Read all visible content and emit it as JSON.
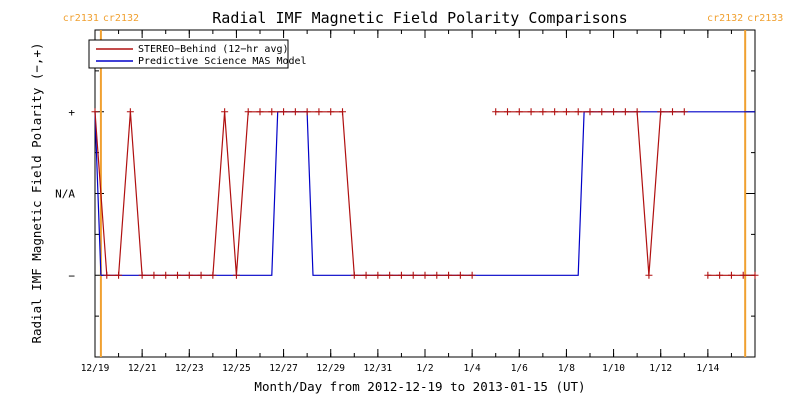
{
  "chart_data": {
    "type": "line",
    "title": "Radial IMF Magnetic Field Polarity Comparisons",
    "xlabel": "Month/Day from 2012-12-19 to 2013-01-15 (UT)",
    "ylabel": "Radial IMF Magnetic Field Polarity (−,+)",
    "xlim": [
      "2012-12-19T00:00",
      "2013-01-16T00:00"
    ],
    "x_ticks": [
      "12/19",
      "12/21",
      "12/23",
      "12/25",
      "12/27",
      "12/29",
      "12/31",
      "1/2",
      "1/4",
      "1/6",
      "1/8",
      "1/10",
      "1/12",
      "1/14"
    ],
    "x_tick_dates": [
      "2012-12-19",
      "2012-12-21",
      "2012-12-23",
      "2012-12-25",
      "2012-12-27",
      "2012-12-29",
      "2012-12-31",
      "2013-01-02",
      "2013-01-04",
      "2013-01-06",
      "2013-01-08",
      "2013-01-10",
      "2013-01-12",
      "2013-01-14"
    ],
    "y_categories": [
      "−",
      "N/A",
      "+"
    ],
    "y_category_values": [
      -1,
      0,
      1
    ],
    "ylim": [
      -2,
      2
    ],
    "legend_position": "top-left",
    "carrington_markers": [
      {
        "date": "2012-12-19T06:00",
        "left_label": "cr2131",
        "right_label": "cr2132"
      },
      {
        "date": "2013-01-15T14:00",
        "left_label": "cr2132",
        "right_label": "cr2133"
      }
    ],
    "marker_color": "#f0a030",
    "series": [
      {
        "name": "STEREO−Behind (12−hr avg)",
        "color": "#b01010",
        "marker": "plus",
        "points": [
          [
            "2012-12-19T00:00",
            1
          ],
          [
            "2012-12-19T12:00",
            -1
          ],
          [
            "2012-12-20T00:00",
            -1
          ],
          [
            "2012-12-20T12:00",
            1
          ],
          [
            "2012-12-21T00:00",
            -1
          ],
          [
            "2012-12-21T12:00",
            -1
          ],
          [
            "2012-12-22T00:00",
            -1
          ],
          [
            "2012-12-22T12:00",
            -1
          ],
          [
            "2012-12-23T00:00",
            -1
          ],
          [
            "2012-12-23T12:00",
            -1
          ],
          [
            "2012-12-24T00:00",
            -1
          ],
          [
            "2012-12-24T12:00",
            1
          ],
          [
            "2012-12-25T00:00",
            -1
          ],
          [
            "2012-12-25T12:00",
            1
          ],
          [
            "2012-12-26T00:00",
            1
          ],
          [
            "2012-12-26T12:00",
            1
          ],
          [
            "2012-12-27T00:00",
            1
          ],
          [
            "2012-12-27T12:00",
            1
          ],
          [
            "2012-12-28T00:00",
            1
          ],
          [
            "2012-12-28T12:00",
            1
          ],
          [
            "2012-12-29T00:00",
            1
          ],
          [
            "2012-12-29T12:00",
            1
          ],
          [
            "2012-12-30T00:00",
            -1
          ],
          [
            "2012-12-30T12:00",
            -1
          ],
          [
            "2012-12-31T00:00",
            -1
          ],
          [
            "2012-12-31T12:00",
            -1
          ],
          [
            "2013-01-01T00:00",
            -1
          ],
          [
            "2013-01-01T12:00",
            -1
          ],
          [
            "2013-01-02T00:00",
            -1
          ],
          [
            "2013-01-02T12:00",
            -1
          ],
          [
            "2013-01-03T00:00",
            -1
          ],
          [
            "2013-01-03T12:00",
            -1
          ],
          [
            "2013-01-04T00:00",
            -1
          ],
          null,
          [
            "2013-01-05T00:00",
            1
          ],
          [
            "2013-01-05T12:00",
            1
          ],
          [
            "2013-01-06T00:00",
            1
          ],
          [
            "2013-01-06T12:00",
            1
          ],
          [
            "2013-01-07T00:00",
            1
          ],
          [
            "2013-01-07T12:00",
            1
          ],
          [
            "2013-01-08T00:00",
            1
          ],
          [
            "2013-01-08T12:00",
            1
          ],
          [
            "2013-01-09T00:00",
            1
          ],
          [
            "2013-01-09T12:00",
            1
          ],
          [
            "2013-01-10T00:00",
            1
          ],
          [
            "2013-01-10T12:00",
            1
          ],
          [
            "2013-01-11T00:00",
            1
          ],
          [
            "2013-01-11T12:00",
            -1
          ],
          [
            "2013-01-12T00:00",
            1
          ],
          [
            "2013-01-12T12:00",
            1
          ],
          [
            "2013-01-13T00:00",
            1
          ],
          null,
          [
            "2013-01-14T00:00",
            -1
          ],
          [
            "2013-01-14T12:00",
            -1
          ],
          [
            "2013-01-15T00:00",
            -1
          ],
          [
            "2013-01-15T12:00",
            -1
          ],
          [
            "2013-01-16T00:00",
            -1
          ]
        ]
      },
      {
        "name": "Predictive Science MAS Model",
        "color": "#0000c8",
        "marker": "none",
        "points": [
          [
            "2012-12-19T00:00",
            1
          ],
          [
            "2012-12-19T06:00",
            -1
          ],
          [
            "2012-12-26T12:00",
            -1
          ],
          [
            "2012-12-26T18:00",
            1
          ],
          [
            "2012-12-28T00:00",
            1
          ],
          [
            "2012-12-28T06:00",
            -1
          ],
          [
            "2013-01-08T12:00",
            -1
          ],
          [
            "2013-01-08T18:00",
            1
          ],
          [
            "2013-01-16T00:00",
            1
          ]
        ]
      }
    ]
  }
}
